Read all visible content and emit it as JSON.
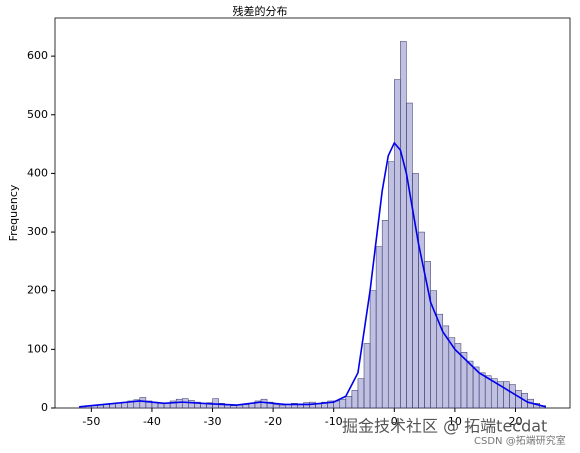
{
  "chart_data": {
    "type": "histogram",
    "title": "残差的分布",
    "ylabel": "Frequency",
    "bins": [
      -52,
      -51,
      -50,
      -49,
      -48,
      -47,
      -46,
      -45,
      -44,
      -43,
      -42,
      -41,
      -40,
      -39,
      -38,
      -37,
      -36,
      -35,
      -34,
      -33,
      -32,
      -31,
      -30,
      -29,
      -28,
      -27,
      -26,
      -25,
      -24,
      -23,
      -22,
      -21,
      -20,
      -19,
      -18,
      -17,
      -16,
      -15,
      -14,
      -13,
      -12,
      -11,
      -10,
      -9,
      -8,
      -7,
      -6,
      -5,
      -4,
      -3,
      -2,
      -1,
      0,
      1,
      2,
      3,
      4,
      5,
      6,
      7,
      8,
      9,
      10,
      11,
      12,
      13,
      14,
      15,
      16,
      17,
      18,
      19,
      20,
      21,
      22,
      23,
      24,
      25
    ],
    "counts": [
      2,
      3,
      4,
      5,
      6,
      8,
      9,
      10,
      12,
      14,
      18,
      12,
      10,
      9,
      8,
      12,
      15,
      16,
      13,
      10,
      8,
      9,
      16,
      8,
      5,
      4,
      5,
      6,
      8,
      12,
      15,
      10,
      6,
      5,
      6,
      8,
      7,
      9,
      10,
      8,
      10,
      12,
      12,
      15,
      20,
      30,
      50,
      110,
      200,
      275,
      320,
      420,
      560,
      625,
      520,
      400,
      300,
      250,
      200,
      160,
      140,
      120,
      110,
      95,
      80,
      70,
      60,
      55,
      50,
      45,
      45,
      40,
      30,
      25,
      15,
      8,
      4,
      2
    ],
    "color": "#8c8cc8",
    "edgecolor": "#30306a",
    "kde": {
      "color": "#0000ee",
      "x": [
        -52,
        -48,
        -44,
        -42,
        -38,
        -35,
        -30,
        -26,
        -22,
        -18,
        -14,
        -10,
        -8,
        -6,
        -4,
        -2,
        -1,
        0,
        1,
        2,
        4,
        6,
        8,
        10,
        14,
        18,
        22,
        25
      ],
      "y": [
        2,
        6,
        10,
        12,
        8,
        10,
        7,
        5,
        10,
        6,
        6,
        10,
        20,
        60,
        200,
        370,
        430,
        452,
        440,
        400,
        280,
        180,
        130,
        100,
        60,
        35,
        10,
        2
      ]
    },
    "xlim": [
      -56,
      29
    ],
    "ylim": [
      0,
      665
    ],
    "xticks": [
      -50,
      -40,
      -30,
      -20,
      -10,
      0,
      10,
      20
    ],
    "yticks": [
      0,
      100,
      200,
      300,
      400,
      500,
      600
    ],
    "annotations": [
      "掘金技术社区 @ 拓端tecdat",
      "CSDN @拓端研究室"
    ]
  }
}
